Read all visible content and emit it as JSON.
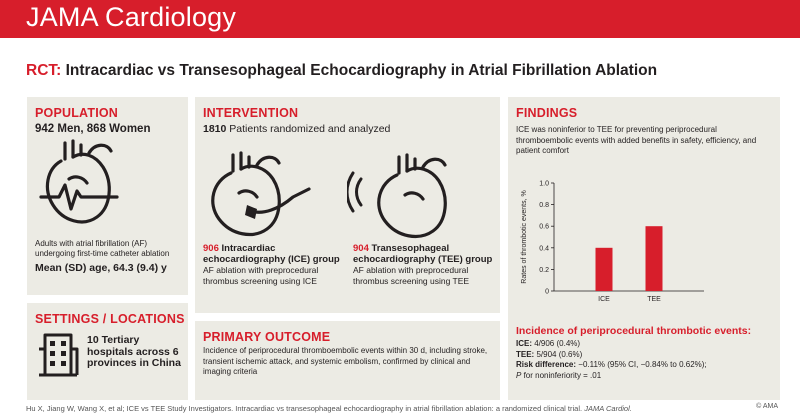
{
  "header": {
    "brand": "JAMA Cardiology"
  },
  "title": {
    "prefix": "RCT:",
    "text": "Intracardiac vs Transesophageal Echocardiography in Atrial Fibrillation Ablation"
  },
  "population": {
    "heading": "POPULATION",
    "counts": "942 Men, 868 Women",
    "description": "Adults with atrial fibrillation (AF) undergoing first-time catheter ablation",
    "age": "Mean (SD) age, 64.3 (9.4) y"
  },
  "settings": {
    "heading": "SETTINGS / LOCATIONS",
    "text": "10 Tertiary hospitals across 6 provinces in China"
  },
  "intervention": {
    "heading": "INTERVENTION",
    "total_num": "1810",
    "total_text": "Patients randomized and analyzed",
    "ice": {
      "n": "906",
      "title": "Intracardiac echocardiography (ICE) group",
      "desc": "AF ablation with preprocedural thrombus screening using ICE"
    },
    "tee": {
      "n": "904",
      "title": "Transesophageal echocardiography (TEE) group",
      "desc": "AF ablation with preprocedural thrombus screening using TEE"
    }
  },
  "outcome": {
    "heading": "PRIMARY OUTCOME",
    "text": "Incidence of periprocedural thromboembolic events within 30 d, including stroke, transient ischemic attack, and systemic embolism, confirmed by clinical and imaging criteria"
  },
  "findings": {
    "heading": "FINDINGS",
    "text": "ICE was noninferior to TEE for preventing periprocedural thromboembolic events with added benefits in safety, efficiency, and patient comfort",
    "ama_small": "© AMA",
    "incidence_title": "Incidence of periprocedural thrombotic events:",
    "ice_label": "ICE:",
    "ice_value": "4/906 (0.4%)",
    "tee_label": "TEE:",
    "tee_value": "5/904 (0.6%)",
    "risk_label": "Risk difference:",
    "risk_value": "−0.11% (95% CI, −0.84% to 0.62%);",
    "p_label": "P",
    "p_value": "for noninferiority = .01"
  },
  "chart_data": {
    "type": "bar",
    "categories": [
      "ICE",
      "TEE"
    ],
    "values": [
      0.4,
      0.6
    ],
    "title": "",
    "xlabel": "",
    "ylabel": "Rates of thrombotic events, %",
    "ylim": [
      0,
      1.0
    ],
    "yticks": [
      "0",
      "0.2",
      "0.4",
      "0.6",
      "0.8",
      "1.0"
    ],
    "bar_color": "#d71e2b"
  },
  "footer": {
    "citation": "Hu X, Jiang W, Wang X, et al; ICE vs TEE Study Investigators. Intracardiac vs transesophageal echocardiography in atrial fibrillation ablation: a randomized clinical trial.",
    "journal": "JAMA Cardiol.",
    "copyright": "© AMA"
  }
}
